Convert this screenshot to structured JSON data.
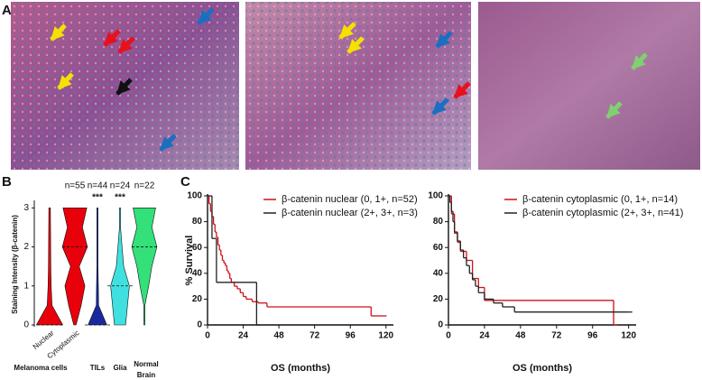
{
  "panel_labels": [
    "A",
    "B",
    "C"
  ],
  "violin_chart": {
    "type": "violin",
    "ylabel": "Staining Intensity (β-catenin)",
    "ylim": [
      0,
      3.1
    ],
    "yticks": [
      0,
      1,
      2,
      3
    ],
    "levels": [
      0,
      0.5,
      1,
      1.5,
      2,
      2.5,
      3
    ],
    "groups": [
      {
        "label": [
          "Melanoma cells"
        ],
        "n_label": "n=55",
        "violins": [
          {
            "name": "Nuclear",
            "color": "#e8000b",
            "density": [
              1,
              0.15,
              0.08,
              0.05,
              0.04,
              0.03,
              0.02
            ],
            "median": 0
          },
          {
            "name": "Cytoplasmic",
            "color": "#e8000b",
            "density": [
              0.05,
              0.45,
              0.75,
              0.3,
              0.95,
              0.55,
              0.9
            ],
            "median": 2
          }
        ]
      },
      {
        "label": [
          "TILs"
        ],
        "n_label": "n=44",
        "significance": "***",
        "violins": [
          {
            "name": null,
            "color": "#1a2a9e",
            "density": [
              0.7,
              0.05,
              0.03,
              0.0,
              0.0,
              0.0,
              0.0
            ],
            "median": 0
          }
        ]
      },
      {
        "label": [
          "Glia"
        ],
        "n_label": "n=24",
        "significance": "***",
        "violins": [
          {
            "name": null,
            "color": "#40e0e0",
            "density": [
              0.4,
              0.55,
              0.7,
              0.25,
              0.12,
              0.0,
              0.0
            ],
            "median": 1
          }
        ]
      },
      {
        "label": [
          "Normal",
          "Brain"
        ],
        "n_label": "n=22",
        "violins": [
          {
            "name": null,
            "color": "#33e07a",
            "density": [
              0.0,
              0.0,
              0.3,
              0.55,
              0.95,
              0.55,
              0.85
            ],
            "median": 2
          }
        ]
      }
    ]
  },
  "km_charts": [
    {
      "type": "line",
      "step": true,
      "ylabel": "% Survival",
      "xlabel": "OS (months)",
      "xlim": [
        0,
        125
      ],
      "xticks": [
        0,
        24,
        48,
        72,
        96,
        120
      ],
      "ylim": [
        0,
        100
      ],
      "yticks": [
        0,
        20,
        40,
        60,
        80,
        100
      ],
      "series": [
        {
          "name": "β-catenin nuclear (0, 1+, n=52)",
          "color": "#d0101a",
          "x": [
            0,
            1,
            2,
            3,
            4,
            5,
            6,
            7,
            8,
            9,
            10,
            11,
            12,
            13,
            14,
            15,
            16,
            18,
            20,
            22,
            24,
            26,
            30,
            34,
            40,
            110,
            118
          ],
          "values": [
            100,
            94,
            88,
            84,
            78,
            72,
            68,
            62,
            58,
            54,
            50,
            48,
            46,
            42,
            40,
            36,
            33,
            30,
            28,
            25,
            22,
            20,
            18,
            17,
            14,
            7,
            7
          ]
        },
        {
          "name": "β-catenin nuclear (2+, 3+, n=3)",
          "color": "#222222",
          "x": [
            0,
            3,
            6,
            33
          ],
          "values": [
            100,
            67,
            33,
            0
          ]
        }
      ]
    },
    {
      "type": "line",
      "step": true,
      "ylabel": null,
      "xlabel": "OS (months)",
      "xlim": [
        0,
        125
      ],
      "xticks": [
        0,
        24,
        48,
        72,
        96,
        120
      ],
      "ylim": [
        0,
        100
      ],
      "yticks": [
        0,
        20,
        40,
        60,
        80,
        100
      ],
      "series": [
        {
          "name": "β-catenin cytoplasmic (0, 1+, n=14)",
          "color": "#d0101a",
          "x": [
            0,
            2,
            4,
            6,
            8,
            12,
            16,
            20,
            24,
            110
          ],
          "values": [
            100,
            86,
            71,
            64,
            57,
            50,
            36,
            29,
            19,
            0
          ]
        },
        {
          "name": "β-catenin cytoplasmic (2+, 3+, n=41)",
          "color": "#222222",
          "x": [
            0,
            1,
            2,
            3,
            4,
            6,
            8,
            10,
            12,
            14,
            16,
            18,
            20,
            24,
            30,
            36,
            44,
            120
          ],
          "values": [
            100,
            95,
            88,
            80,
            72,
            65,
            58,
            52,
            46,
            40,
            35,
            30,
            25,
            20,
            17,
            14,
            10,
            10
          ]
        }
      ]
    }
  ]
}
